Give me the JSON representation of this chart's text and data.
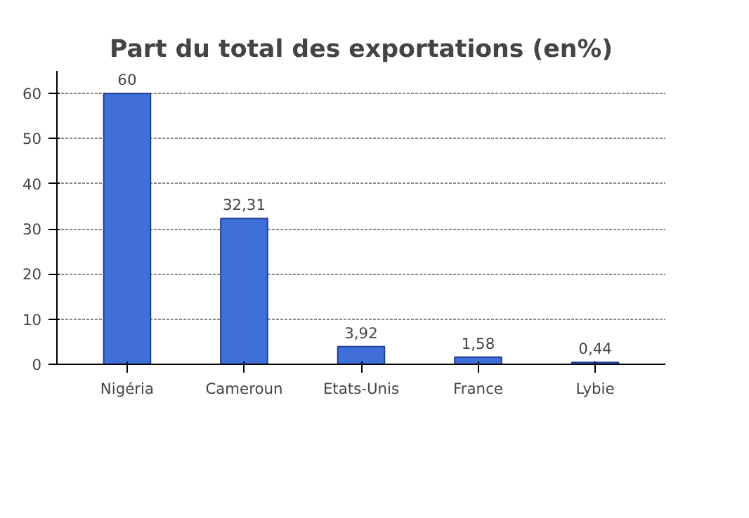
{
  "chart_data": {
    "type": "bar",
    "title": "Part du total des exportations (en%)",
    "categories": [
      "Nigéria",
      "Cameroun",
      "Etats-Unis",
      "France",
      "Lybie"
    ],
    "values": [
      60,
      32.31,
      3.92,
      1.58,
      0.44
    ],
    "value_labels": [
      "60",
      "32,31",
      "3,92",
      "1,58",
      "0,44"
    ],
    "color": "#3f6fd8",
    "ylim": [
      0,
      65
    ],
    "yticks": [
      0,
      10,
      20,
      30,
      40,
      50,
      60
    ],
    "grid": "y"
  }
}
